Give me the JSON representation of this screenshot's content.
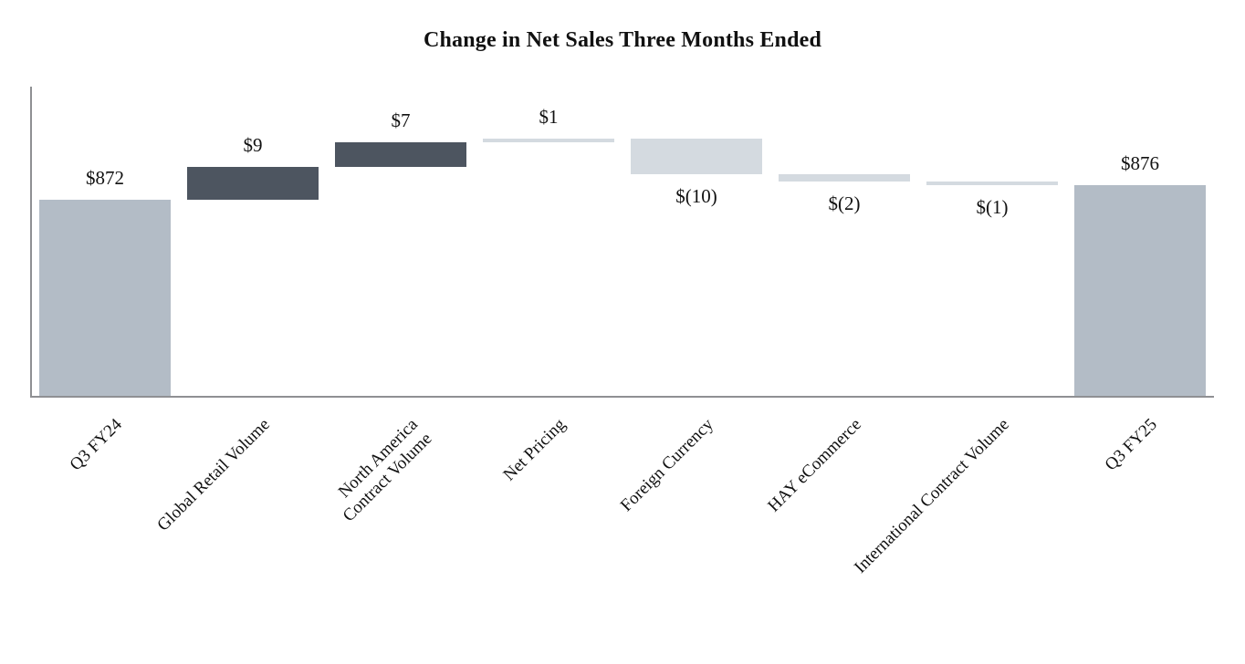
{
  "chart_data": {
    "type": "bar",
    "subtype": "waterfall",
    "title": "Change in Net Sales Three Months Ended",
    "xlabel": "",
    "ylabel": "",
    "grid": false,
    "legend": "none",
    "ylim": [
      818,
      903
    ],
    "axis_color": "#8f9093",
    "colors": {
      "total": "#b3bcc6",
      "dark": "#4d5560",
      "light": "#d4dae0"
    },
    "categories": [
      "Q3 FY24",
      "Global Retail Volume",
      "North America Contract Volume",
      "Net Pricing",
      "Foreign Currency",
      "HAY eCommerce",
      "International Contract Volume",
      "Q3 FY25"
    ],
    "values": [
      872,
      9,
      7,
      1,
      -10,
      -2,
      -1,
      876
    ],
    "bars": [
      {
        "slug": "q3-fy24",
        "lines": [
          "Q3 FY24"
        ],
        "value": 872,
        "value_label": "$872",
        "role": "total",
        "color_key": "total",
        "label_position": "above"
      },
      {
        "slug": "global-retail-volume",
        "lines": [
          "Global Retail Volume"
        ],
        "value": 9,
        "value_label": "$9",
        "role": "delta",
        "color_key": "dark",
        "label_position": "above"
      },
      {
        "slug": "north-america-contract-volume",
        "lines": [
          "North America",
          "Contract Volume"
        ],
        "value": 7,
        "value_label": "$7",
        "role": "delta",
        "color_key": "dark",
        "label_position": "above"
      },
      {
        "slug": "net-pricing",
        "lines": [
          "Net Pricing"
        ],
        "value": 1,
        "value_label": "$1",
        "role": "delta",
        "color_key": "light",
        "label_position": "above"
      },
      {
        "slug": "foreign-currency",
        "lines": [
          "Foreign Currency"
        ],
        "value": -10,
        "value_label": "$(10)",
        "role": "delta",
        "color_key": "light",
        "label_position": "below"
      },
      {
        "slug": "hay-ecommerce",
        "lines": [
          "HAY eCommerce"
        ],
        "value": -2,
        "value_label": "$(2)",
        "role": "delta",
        "color_key": "light",
        "label_position": "below"
      },
      {
        "slug": "international-contract-volume",
        "lines": [
          "International Contract Volume"
        ],
        "value": -1,
        "value_label": "$(1)",
        "role": "delta",
        "color_key": "light",
        "label_position": "below"
      },
      {
        "slug": "q3-fy25",
        "lines": [
          "Q3 FY25"
        ],
        "value": 876,
        "value_label": "$876",
        "role": "total",
        "color_key": "total",
        "label_position": "above"
      }
    ]
  }
}
